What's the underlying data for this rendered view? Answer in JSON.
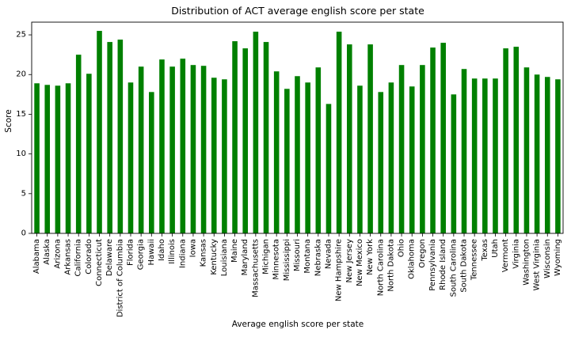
{
  "chart_data": {
    "type": "bar",
    "title": "Distribution of ACT average english score per state",
    "xlabel": "Average english score per state",
    "ylabel": "Score",
    "ylim": [
      0,
      26.6
    ],
    "yticks": [
      0,
      5,
      10,
      15,
      20,
      25
    ],
    "grid": false,
    "bar_color": "#008000",
    "categories": [
      "Alabama",
      "Alaska",
      "Arizona",
      "Arkansas",
      "California",
      "Colorado",
      "Connecticut",
      "Delaware",
      "District of Columbia",
      "Florida",
      "Georgia",
      "Hawaii",
      "Idaho",
      "Illinois",
      "Indiana",
      "Iowa",
      "Kansas",
      "Kentucky",
      "Louisiana",
      "Maine",
      "Maryland",
      "Massachusetts",
      "Michigan",
      "Minnesota",
      "Mississippi",
      "Missouri",
      "Montana",
      "Nebraska",
      "Nevada",
      "New Hampshire",
      "New Jersey",
      "New Mexico",
      "New York",
      "North Carolina",
      "North Dakota",
      "Ohio",
      "Oklahoma",
      "Oregon",
      "Pennsylvania",
      "Rhode Island",
      "South Carolina",
      "South Dakota",
      "Tennessee",
      "Texas",
      "Utah",
      "Vermont",
      "Virginia",
      "Washington",
      "West Virginia",
      "Wisconsin",
      "Wyoming"
    ],
    "values": [
      18.9,
      18.7,
      18.6,
      18.9,
      22.5,
      20.1,
      25.5,
      24.1,
      24.4,
      19.0,
      21.0,
      17.8,
      21.9,
      21.0,
      22.0,
      21.2,
      21.1,
      19.6,
      19.4,
      24.2,
      23.3,
      25.4,
      24.1,
      20.4,
      18.2,
      19.8,
      19.0,
      20.9,
      16.3,
      25.4,
      23.8,
      18.6,
      23.8,
      17.8,
      19.0,
      21.2,
      18.5,
      21.2,
      23.4,
      24.0,
      17.5,
      20.7,
      19.5,
      19.5,
      19.5,
      23.3,
      23.5,
      20.9,
      20.0,
      19.7,
      19.4
    ]
  }
}
